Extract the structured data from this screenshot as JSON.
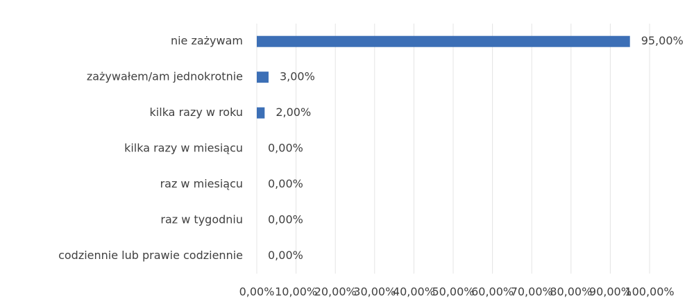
{
  "chart_data": {
    "type": "bar",
    "orientation": "horizontal",
    "categories": [
      "nie zażywam",
      "zażywałem/am  jednokrotnie",
      "kilka razy w roku",
      "kilka razy w miesiącu",
      "raz w miesiącu",
      "raz w tygodniu",
      "codziennie lub prawie codziennie"
    ],
    "values": [
      95,
      3,
      2,
      0,
      0,
      0,
      0
    ],
    "value_labels": [
      "95,00%",
      "3,00%",
      "2,00%",
      "0,00%",
      "0,00%",
      "0,00%",
      "0,00%"
    ],
    "color": "#3c6fb6",
    "xlim": [
      0,
      100
    ],
    "xticks": [
      {
        "value": 0,
        "label": "0,00%"
      },
      {
        "value": 10,
        "label": "10,00%"
      },
      {
        "value": 20,
        "label": "20,00%"
      },
      {
        "value": 30,
        "label": "30,00%"
      },
      {
        "value": 40,
        "label": "40,00%"
      },
      {
        "value": 50,
        "label": "50,00%"
      },
      {
        "value": 60,
        "label": "60,00%"
      },
      {
        "value": 70,
        "label": "70,00%"
      },
      {
        "value": 80,
        "label": "80,00%"
      },
      {
        "value": 90,
        "label": "90,00%"
      },
      {
        "value": 100,
        "label": "100,00%"
      }
    ],
    "grid": true
  }
}
